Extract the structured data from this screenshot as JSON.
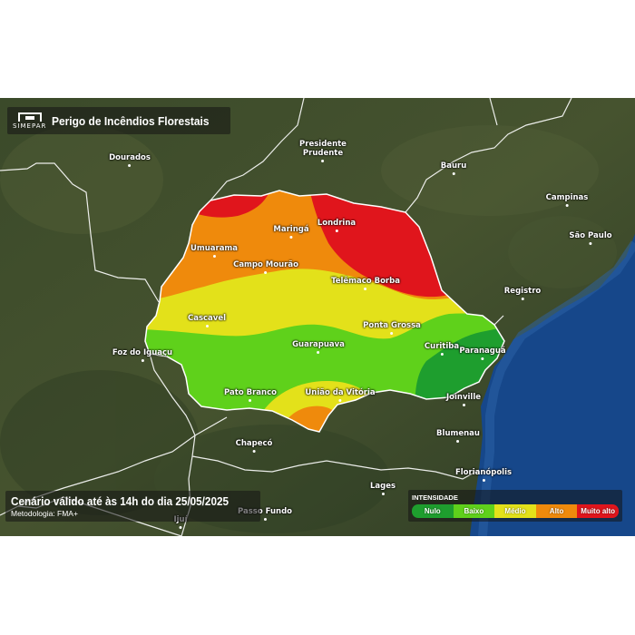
{
  "header": {
    "logo_text": "SIMEPAR",
    "title": "Perigo de Incêndios Florestais"
  },
  "footer": {
    "scenario": "Cenário válido até às 14h do dia 25/05/2025",
    "methodology": "Metodologia: FMA+"
  },
  "legend": {
    "title": "INTENSIDADE",
    "items": [
      {
        "label": "Nulo",
        "color": "#1e9e2e"
      },
      {
        "label": "Baixo",
        "color": "#5fd11b"
      },
      {
        "label": "Médio",
        "color": "#e3e11a"
      },
      {
        "label": "Alto",
        "color": "#ef8a0c"
      },
      {
        "label": "Muito alto",
        "color": "#e0151c"
      }
    ]
  },
  "cities": {
    "presidente_prudente": "Presidente\nPrudente",
    "dourados": "Dourados",
    "bauru": "Bauru",
    "campinas": "Campinas",
    "sao_paulo": "São Paulo",
    "registro": "Registro",
    "londrina": "Londrina",
    "maringa": "Maringá",
    "umuarama": "Umuarama",
    "campo_mourao": "Campo Mourão",
    "telemaco_borba": "Telêmaco Borba",
    "cascavel": "Cascavel",
    "ponta_grossa": "Ponta Grossa",
    "foz_do_iguacu": "Foz do Iguaçu",
    "guarapuava": "Guarapuava",
    "curitiba": "Curitiba",
    "paranagua": "Paranaguá",
    "pato_branco": "Pato Branco",
    "uniao_da_vitoria": "União da Vitória",
    "joinville": "Joinville",
    "chapeco": "Chapecó",
    "blumenau": "Blumenau",
    "florianopolis": "Florianópolis",
    "lages": "Lages",
    "passo_fundo": "Passo Fundo",
    "ijui": "Ijuí"
  },
  "colors": {
    "nulo": "#1e9e2e",
    "baixo": "#5fd11b",
    "medio": "#e3e11a",
    "alto": "#ef8a0c",
    "muito_alto": "#e0151c",
    "ocean": "#16478a",
    "land": "#3a4a2c"
  }
}
